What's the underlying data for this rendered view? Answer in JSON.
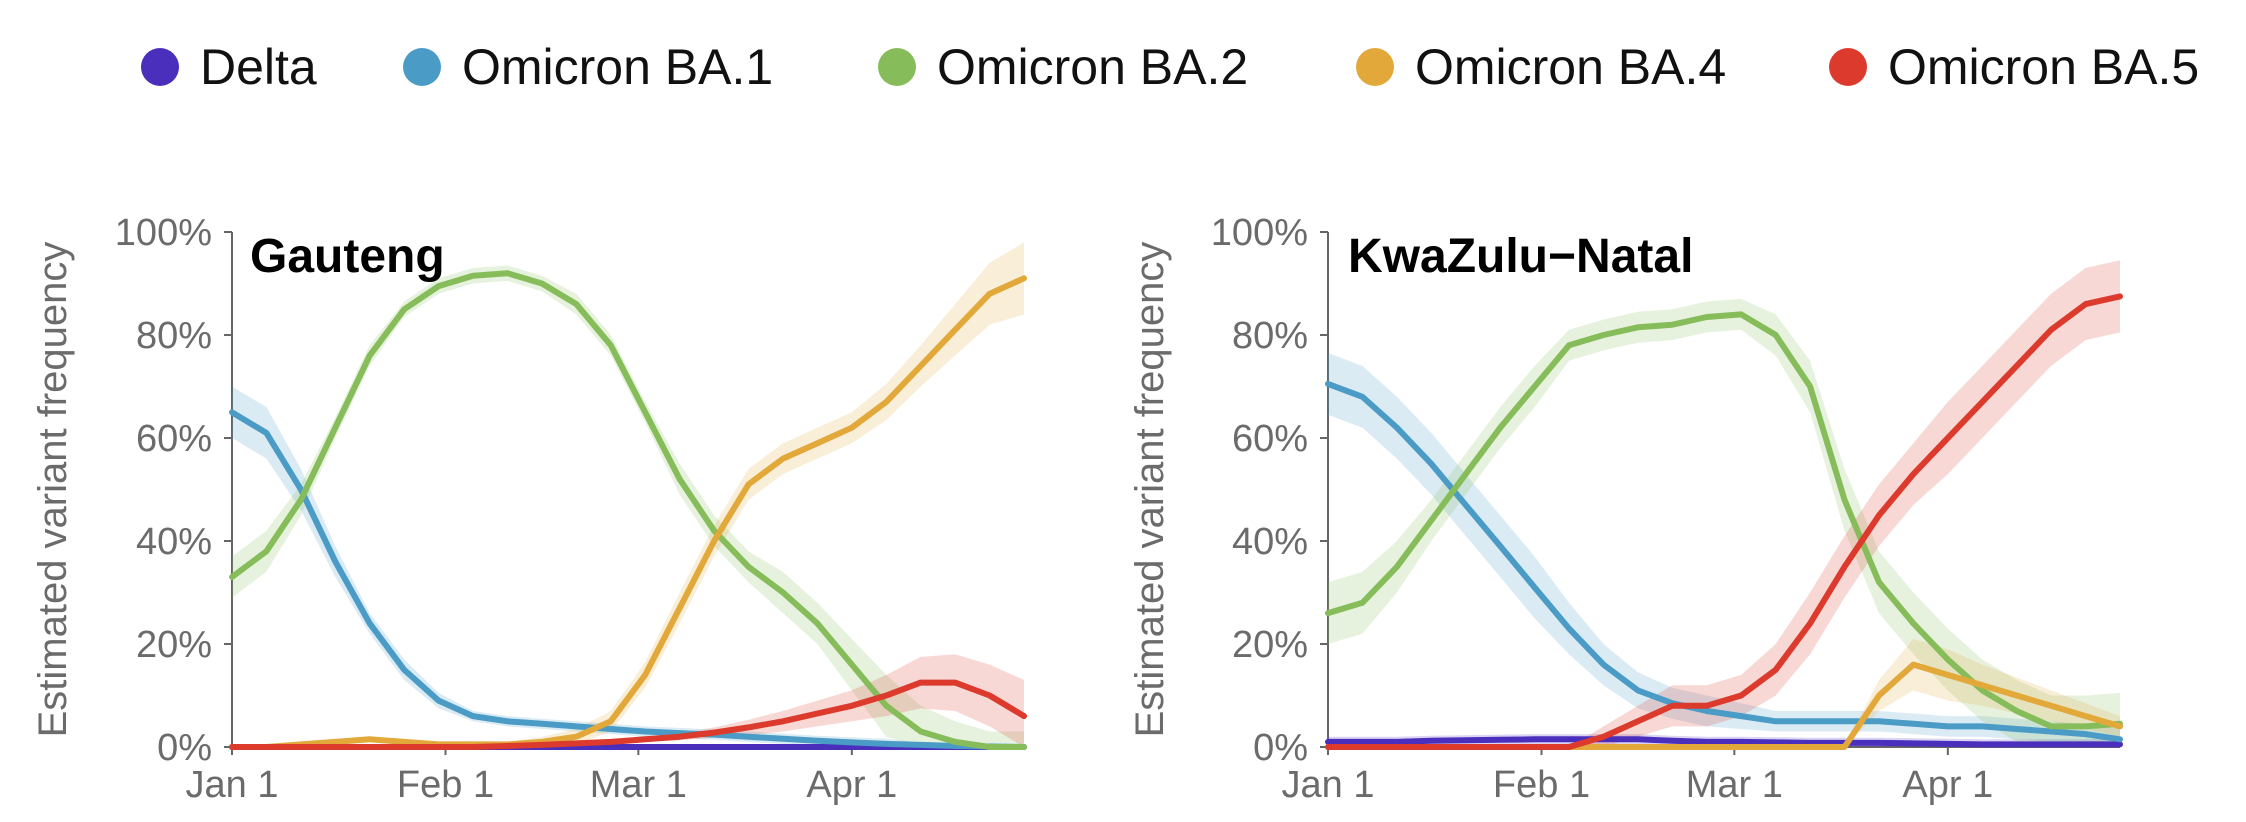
{
  "chart_data": [
    {
      "type": "line",
      "title": "Gauteng",
      "ylabel": "Estimated variant frequency",
      "xlabel": "",
      "x_ticks": [
        "Jan 1",
        "Feb 1",
        "Mar 1",
        "Apr 1"
      ],
      "x_tick_dates": [
        "2022-01-01",
        "2022-02-01",
        "2022-03-01",
        "2022-04-01"
      ],
      "x_range": [
        "2022-01-01",
        "2022-04-26"
      ],
      "y_ticks": [
        "0%",
        "20%",
        "40%",
        "60%",
        "80%",
        "100%"
      ],
      "ylim": [
        0,
        100
      ],
      "x": [
        "2022-01-01",
        "2022-01-06",
        "2022-01-11",
        "2022-01-16",
        "2022-01-21",
        "2022-01-26",
        "2022-01-31",
        "2022-02-05",
        "2022-02-10",
        "2022-02-15",
        "2022-02-20",
        "2022-02-25",
        "2022-03-02",
        "2022-03-07",
        "2022-03-12",
        "2022-03-17",
        "2022-03-22",
        "2022-03-27",
        "2022-04-01",
        "2022-04-06",
        "2022-04-11",
        "2022-04-16",
        "2022-04-21",
        "2022-04-26"
      ],
      "series": [
        {
          "name": "Delta",
          "values": [
            0,
            0,
            0,
            0,
            0,
            0,
            0,
            0,
            0,
            0,
            0,
            0,
            0,
            0,
            0,
            0,
            0,
            0,
            0,
            0,
            0,
            0,
            0,
            0
          ],
          "band": [
            0,
            0,
            0,
            0,
            0,
            0,
            0,
            0,
            0,
            0,
            0,
            0,
            0,
            0,
            0,
            0,
            0,
            0,
            0,
            0,
            0,
            0,
            0,
            0
          ]
        },
        {
          "name": "Omicron BA.1",
          "values": [
            65,
            61,
            50,
            36,
            24,
            15,
            9,
            6,
            5,
            4.5,
            4,
            3.5,
            3,
            2.7,
            2.4,
            2,
            1.6,
            1.2,
            0.9,
            0.6,
            0.4,
            0.2,
            0.1,
            0
          ],
          "band": [
            5,
            5,
            4,
            3,
            2,
            2,
            1.5,
            1,
            1,
            1,
            1,
            1,
            1,
            1,
            1,
            1,
            1,
            1,
            1,
            1,
            0.5,
            0.5,
            0.5,
            0.5
          ]
        },
        {
          "name": "Omicron BA.2",
          "values": [
            33,
            38,
            48,
            62,
            76,
            85,
            89.5,
            91.5,
            92,
            90,
            86,
            78,
            65,
            52,
            42,
            35,
            30,
            24,
            16,
            8,
            3,
            1,
            0,
            0
          ],
          "band": [
            4,
            4,
            3,
            2,
            2,
            1.5,
            1.5,
            1.5,
            1.5,
            1.5,
            2,
            2,
            2,
            3,
            3,
            3,
            4,
            4,
            5,
            6,
            5,
            4,
            3,
            3
          ],
          "x_override": null
        },
        {
          "name": "Omicron BA.4",
          "values": [
            0,
            0,
            0.5,
            1,
            1.5,
            1,
            0.5,
            0.5,
            0.5,
            1,
            2,
            5,
            14,
            27,
            40,
            51,
            56,
            59,
            62,
            67,
            74,
            81,
            88,
            91
          ],
          "band": [
            0,
            0,
            0.5,
            0.5,
            0.5,
            0.5,
            0.5,
            0.5,
            0.5,
            1,
            1.5,
            2,
            2.5,
            3,
            3,
            3,
            3,
            3,
            3,
            3.5,
            4,
            5,
            6,
            7
          ]
        },
        {
          "name": "Omicron BA.5",
          "values": [
            0,
            0,
            0,
            0,
            0,
            0,
            0,
            0,
            0.2,
            0.4,
            0.7,
            1,
            1.5,
            2,
            2.8,
            3.8,
            5,
            6.5,
            8,
            10,
            12.5,
            12.5,
            10,
            6
          ],
          "band": [
            0,
            0,
            0,
            0,
            0,
            0,
            0,
            0,
            0.2,
            0.3,
            0.5,
            0.5,
            0.5,
            0.7,
            1,
            1.5,
            2,
            2.5,
            3,
            4,
            5,
            5.5,
            6,
            7
          ]
        }
      ]
    },
    {
      "type": "line",
      "title": "KwaZulu−Natal",
      "ylabel": "Estimated variant frequency",
      "xlabel": "",
      "x_ticks": [
        "Jan 1",
        "Feb 1",
        "Mar 1",
        "Apr 1"
      ],
      "x_tick_dates": [
        "2022-01-01",
        "2022-02-01",
        "2022-03-01",
        "2022-04-01"
      ],
      "x_range": [
        "2022-01-01",
        "2022-04-26"
      ],
      "y_ticks": [
        "0%",
        "20%",
        "40%",
        "60%",
        "80%",
        "100%"
      ],
      "ylim": [
        0,
        100
      ],
      "x": [
        "2022-01-01",
        "2022-01-06",
        "2022-01-11",
        "2022-01-16",
        "2022-01-21",
        "2022-01-26",
        "2022-01-31",
        "2022-02-05",
        "2022-02-10",
        "2022-02-15",
        "2022-02-20",
        "2022-02-25",
        "2022-03-02",
        "2022-03-07",
        "2022-03-12",
        "2022-03-17",
        "2022-03-22",
        "2022-03-27",
        "2022-04-01",
        "2022-04-06",
        "2022-04-11",
        "2022-04-16",
        "2022-04-21",
        "2022-04-26"
      ],
      "series": [
        {
          "name": "Delta",
          "values": [
            1,
            1,
            1,
            1.2,
            1.3,
            1.4,
            1.5,
            1.5,
            1.5,
            1.5,
            1.2,
            1,
            1,
            0.9,
            0.8,
            0.8,
            0.8,
            0.7,
            0.6,
            0.5,
            0.5,
            0.5,
            0.5,
            0.5
          ],
          "band": [
            1,
            1,
            1,
            1,
            1,
            1,
            1,
            1,
            1,
            1,
            1,
            1,
            1,
            1,
            1,
            1,
            1,
            1,
            1,
            1,
            1,
            1,
            1,
            1
          ]
        },
        {
          "name": "Omicron BA.1",
          "values": [
            70.5,
            68,
            62,
            55,
            47,
            39,
            31,
            23,
            16,
            11,
            8.5,
            7,
            6,
            5,
            5,
            5,
            5,
            4.5,
            4,
            4,
            3.5,
            3,
            2.5,
            1.5
          ],
          "band": [
            6,
            6,
            6,
            6,
            6,
            6,
            6,
            5,
            4,
            3.5,
            3,
            3,
            2.5,
            2,
            2,
            2,
            2,
            2,
            2,
            2,
            2,
            2,
            2,
            2
          ]
        },
        {
          "name": "Omicron BA.2",
          "values": [
            26,
            28,
            35,
            44,
            53,
            62,
            70,
            78,
            80,
            81.5,
            82,
            83.5,
            84,
            80,
            70,
            48,
            32,
            24,
            17,
            11,
            7,
            4,
            4,
            4.5
          ],
          "band": [
            6,
            6,
            5,
            4,
            4,
            4,
            4,
            3,
            3,
            3,
            3,
            3,
            3,
            4,
            5,
            6,
            6,
            6,
            6,
            6,
            6,
            6,
            6,
            6
          ]
        },
        {
          "name": "Omicron BA.4",
          "values": [
            0,
            0,
            0,
            0,
            0,
            0,
            0,
            0,
            0,
            0,
            0,
            0,
            0,
            0,
            0,
            0,
            10,
            16,
            14,
            12,
            10,
            8,
            6,
            4
          ],
          "band": [
            0,
            0,
            0,
            0,
            0,
            0,
            0,
            0,
            0,
            0,
            0,
            0,
            0,
            0,
            0,
            0,
            3,
            5,
            5,
            4,
            3.5,
            3,
            2.5,
            2
          ]
        },
        {
          "name": "Omicron BA.5",
          "values": [
            0,
            0,
            0,
            0,
            0,
            0,
            0,
            0,
            2,
            5,
            8,
            8,
            10,
            15,
            24,
            35,
            45,
            53,
            60,
            67,
            74,
            81,
            86,
            87.5
          ],
          "band": [
            0,
            0,
            0,
            0,
            0,
            0,
            0,
            0,
            2,
            3,
            4,
            4,
            4,
            5,
            6,
            6,
            6,
            6,
            7,
            7,
            7,
            7,
            7,
            7
          ]
        }
      ]
    }
  ],
  "legend": {
    "placement": "top",
    "items": [
      {
        "label": "Delta",
        "color": "#4a2fbd"
      },
      {
        "label": "Omicron BA.1",
        "color": "#4a9bc6"
      },
      {
        "label": "Omicron BA.2",
        "color": "#86bd5a"
      },
      {
        "label": "Omicron BA.4",
        "color": "#e2a83a"
      },
      {
        "label": "Omicron BA.5",
        "color": "#dc3a2c"
      }
    ]
  }
}
